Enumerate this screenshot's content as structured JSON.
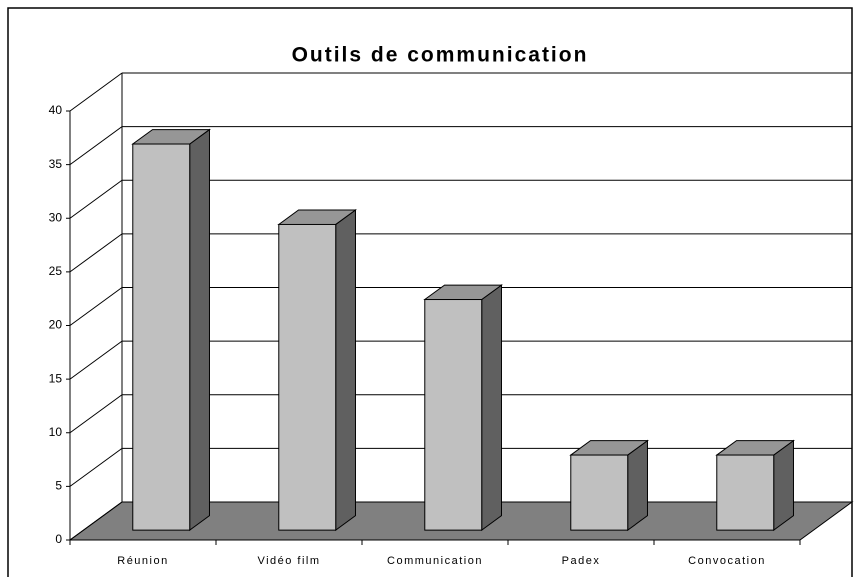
{
  "chart_data": {
    "type": "bar3d",
    "title": "Outils de communication",
    "categories": [
      "Réunion",
      "Vidéo film",
      "Communication",
      "Padex",
      "Convocation"
    ],
    "values": [
      36,
      28.5,
      21.5,
      7,
      7
    ],
    "color": "#c0c0c0",
    "ylim": [
      0,
      40
    ],
    "yticks": [
      0,
      5,
      10,
      15,
      20,
      25,
      30,
      35,
      40
    ],
    "grid": true
  }
}
